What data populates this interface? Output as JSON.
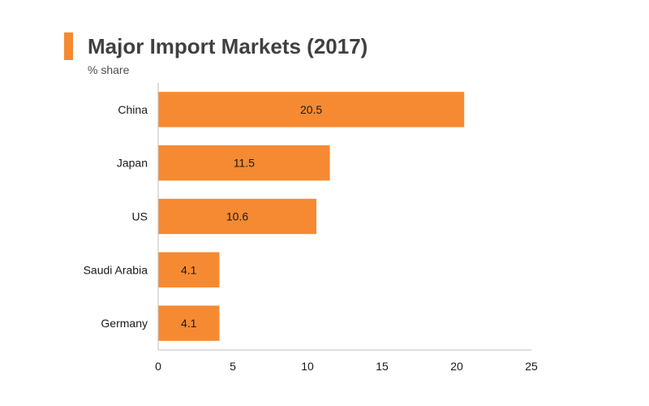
{
  "chart_data": {
    "type": "bar",
    "orientation": "horizontal",
    "title": "Major Import Markets (2017)",
    "subtitle": "% share",
    "categories": [
      "China",
      "Japan",
      "US",
      "Saudi Arabia",
      "Germany"
    ],
    "values": [
      20.5,
      11.5,
      10.6,
      4.1,
      4.1
    ],
    "value_labels": [
      "20.5",
      "11.5",
      "10.6",
      "4.1",
      "4.1"
    ],
    "xlim": [
      0,
      25
    ],
    "xticks": [
      0,
      5,
      10,
      15,
      20,
      25
    ],
    "grid": false,
    "bar_color": "#f58a33",
    "accent_color": "#f58a33"
  }
}
